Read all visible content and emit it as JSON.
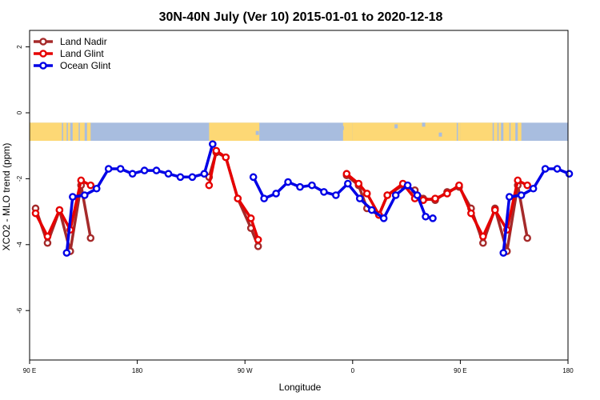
{
  "chart_data": {
    "type": "line",
    "title": "30N-40N July (Ver 10)   2015-01-01 to 2020-12-18",
    "xlabel": "Longitude",
    "ylabel": "XCO2 - MLO trend (ppm)",
    "xlim": [
      90,
      540
    ],
    "ylim": [
      -7.5,
      2.5
    ],
    "x_ticks": [
      {
        "value": 90,
        "label": "90 E"
      },
      {
        "value": 180,
        "label": "180"
      },
      {
        "value": 270,
        "label": "90 W"
      },
      {
        "value": 360,
        "label": "0"
      },
      {
        "value": 450,
        "label": "90 E"
      },
      {
        "value": 540,
        "label": "180"
      }
    ],
    "y_ticks": [
      {
        "value": 2,
        "label": "2"
      },
      {
        "value": 0,
        "label": "0"
      },
      {
        "value": -2,
        "label": "-2"
      },
      {
        "value": -4,
        "label": "-4"
      },
      {
        "value": -6,
        "label": "-6"
      }
    ],
    "grid": false,
    "legend_position": "top-left",
    "map_strip": {
      "y_top": -0.3,
      "y_bottom": -0.85,
      "ocean_color": "#a8bddf",
      "land_color": "#fdd875"
    },
    "series": [
      {
        "name": "Land Nadir",
        "color": "#a52a2a",
        "segments": [
          [
            [
              95,
              -2.9
            ],
            [
              105,
              -3.95
            ],
            [
              115,
              -2.95
            ],
            [
              124,
              -4.2
            ],
            [
              133,
              -2.2
            ],
            [
              141,
              -3.8
            ]
          ],
          [
            [
              240,
              -1.95
            ],
            [
              246,
              -1.2
            ],
            [
              254,
              -1.35
            ],
            [
              264,
              -2.6
            ],
            [
              275,
              -3.5
            ],
            [
              281,
              -4.05
            ]
          ],
          [
            [
              355,
              -1.9
            ],
            [
              365,
              -2.2
            ],
            [
              372,
              -2.9
            ],
            [
              382,
              -3.1
            ],
            [
              389,
              -2.5
            ],
            [
              402,
              -2.2
            ],
            [
              412,
              -2.35
            ],
            [
              419,
              -2.6
            ],
            [
              429,
              -2.65
            ],
            [
              439,
              -2.4
            ],
            [
              449,
              -2.25
            ],
            [
              459,
              -2.9
            ],
            [
              469,
              -3.95
            ],
            [
              479,
              -2.9
            ],
            [
              489,
              -4.2
            ],
            [
              498,
              -2.2
            ],
            [
              506,
              -3.8
            ]
          ]
        ]
      },
      {
        "name": "Land Glint",
        "color": "#e60000",
        "segments": [
          [
            [
              95,
              -3.05
            ],
            [
              105,
              -3.75
            ],
            [
              115,
              -2.95
            ],
            [
              124,
              -3.55
            ],
            [
              133,
              -2.05
            ],
            [
              141,
              -2.2
            ]
          ],
          [
            [
              240,
              -2.2
            ],
            [
              246,
              -1.15
            ],
            [
              254,
              -1.35
            ],
            [
              264,
              -2.6
            ],
            [
              275,
              -3.2
            ],
            [
              281,
              -3.85
            ]
          ],
          [
            [
              355,
              -1.85
            ],
            [
              365,
              -2.15
            ],
            [
              372,
              -2.45
            ],
            [
              382,
              -3.1
            ],
            [
              389,
              -2.5
            ],
            [
              402,
              -2.15
            ],
            [
              412,
              -2.6
            ],
            [
              419,
              -2.65
            ],
            [
              429,
              -2.6
            ],
            [
              439,
              -2.45
            ],
            [
              449,
              -2.2
            ],
            [
              459,
              -3.05
            ],
            [
              469,
              -3.75
            ],
            [
              479,
              -2.95
            ],
            [
              489,
              -3.55
            ],
            [
              498,
              -2.05
            ],
            [
              506,
              -2.2
            ]
          ]
        ]
      },
      {
        "name": "Ocean Glint",
        "color": "#0000e6",
        "segments": [
          [
            [
              121,
              -4.25
            ],
            [
              126,
              -2.55
            ],
            [
              136,
              -2.5
            ],
            [
              146,
              -2.3
            ],
            [
              156,
              -1.7
            ],
            [
              166,
              -1.7
            ],
            [
              176,
              -1.85
            ],
            [
              186,
              -1.75
            ],
            [
              196,
              -1.75
            ],
            [
              206,
              -1.85
            ],
            [
              216,
              -1.95
            ],
            [
              226,
              -1.95
            ],
            [
              236,
              -1.85
            ],
            [
              243,
              -0.95
            ]
          ],
          [
            [
              277,
              -1.95
            ],
            [
              286,
              -2.6
            ],
            [
              296,
              -2.45
            ],
            [
              306,
              -2.1
            ],
            [
              316,
              -2.25
            ],
            [
              326,
              -2.2
            ],
            [
              336,
              -2.4
            ],
            [
              346,
              -2.5
            ],
            [
              356,
              -2.15
            ],
            [
              366,
              -2.6
            ],
            [
              376,
              -2.95
            ],
            [
              386,
              -3.2
            ],
            [
              396,
              -2.5
            ],
            [
              406,
              -2.2
            ],
            [
              414,
              -2.5
            ],
            [
              421,
              -3.15
            ],
            [
              427,
              -3.2
            ]
          ]
        ]
      },
      {
        "color": "#0000e6",
        "segments": [
          [
            [
              486,
              -4.25
            ],
            [
              491,
              -2.55
            ],
            [
              501,
              -2.5
            ],
            [
              511,
              -2.3
            ],
            [
              521,
              -1.7
            ],
            [
              531,
              -1.7
            ],
            [
              541,
              -1.85
            ]
          ]
        ]
      }
    ]
  }
}
